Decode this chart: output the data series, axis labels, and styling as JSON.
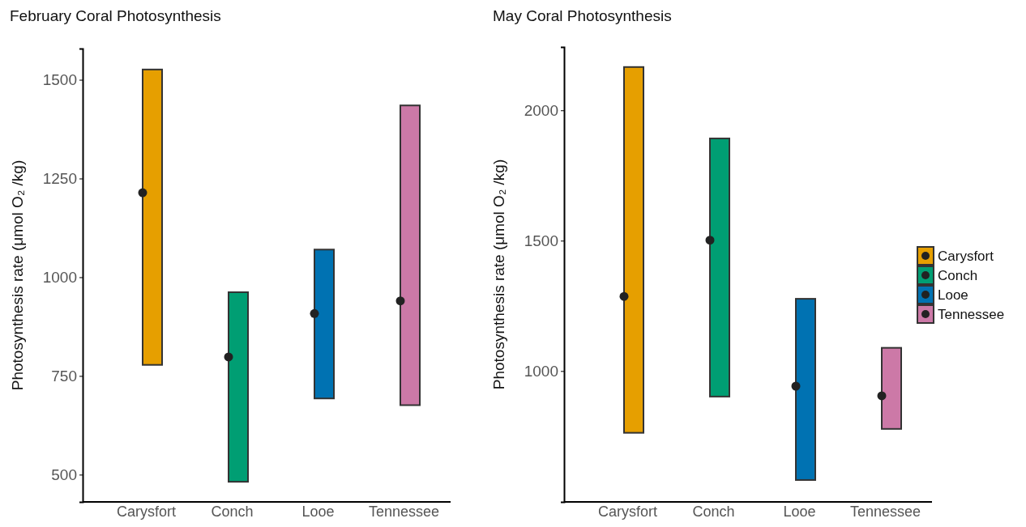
{
  "chart_data": [
    {
      "type": "bar",
      "title": "February Coral Photosynthesis",
      "ylabel": "Photosynthesis rate (μmol O₂ /kg)",
      "categories": [
        "Carysfort",
        "Conch",
        "Looe",
        "Tennessee"
      ],
      "ylim": [
        431,
        1579
      ],
      "yticks": [
        500,
        750,
        1000,
        1250,
        1500
      ],
      "grid": false,
      "series": [
        {
          "values": [
            748,
            480,
            377,
            759
          ],
          "base": [
            778,
            482,
            693,
            676
          ],
          "colors": [
            "#e69f00",
            "#009e73",
            "#0072b2",
            "#cc79a7"
          ]
        },
        {
          "type": "scatter",
          "x": [
            "Carysfort",
            "Conch",
            "Looe",
            "Tennessee"
          ],
          "values": [
            1214,
            798,
            908,
            940
          ],
          "color": "#222222",
          "marker": "circle"
        }
      ]
    },
    {
      "type": "bar",
      "title": "May Coral Photosynthesis",
      "ylabel": "Photosynthesis rate (μmol O₂ /kg)",
      "categories": [
        "Carysfort",
        "Conch",
        "Looe",
        "Tennessee"
      ],
      "ylim": [
        498,
        2243
      ],
      "yticks": [
        1000,
        1500,
        2000
      ],
      "grid": false,
      "legend": "right",
      "series": [
        {
          "name": "Carysfort",
          "color": "#e69f00",
          "values": [
            1403,
            null,
            null,
            null
          ],
          "base": [
            763,
            null,
            null,
            null
          ]
        },
        {
          "name": "Conch",
          "color": "#009e73",
          "values": [
            null,
            990,
            null,
            null
          ],
          "base": [
            null,
            902,
            null,
            null
          ]
        },
        {
          "name": "Looe",
          "color": "#0072b2",
          "values": [
            null,
            null,
            695,
            null
          ],
          "base": [
            null,
            null,
            582,
            null
          ]
        },
        {
          "name": "Tennessee",
          "color": "#cc79a7",
          "values": [
            null,
            null,
            null,
            311
          ],
          "base": [
            null,
            null,
            null,
            778
          ]
        },
        {
          "type": "scatter",
          "x": [
            "Carysfort",
            "Conch",
            "Looe",
            "Tennessee"
          ],
          "values": [
            1286,
            1502,
            942,
            905
          ],
          "color": "#222222",
          "marker": "circle"
        }
      ]
    }
  ]
}
